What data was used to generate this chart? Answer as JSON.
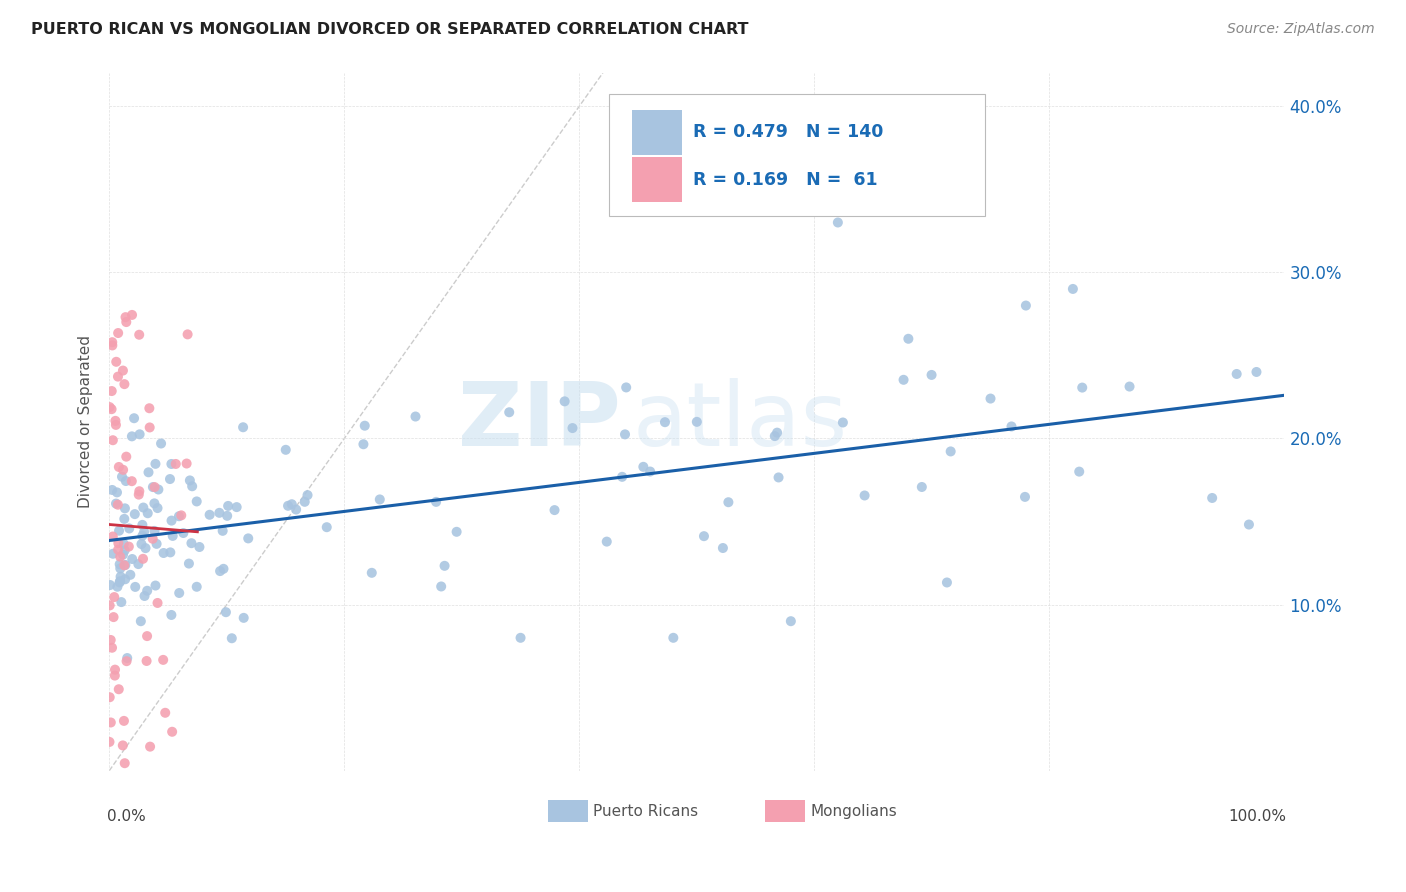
{
  "title": "PUERTO RICAN VS MONGOLIAN DIVORCED OR SEPARATED CORRELATION CHART",
  "source": "Source: ZipAtlas.com",
  "ylabel": "Divorced or Separated",
  "x_range": [
    0.0,
    1.0
  ],
  "y_range": [
    0.0,
    0.42
  ],
  "blue_R": 0.479,
  "blue_N": 140,
  "pink_R": 0.169,
  "pink_N": 61,
  "blue_color": "#a8c4e0",
  "pink_color": "#f4a0b0",
  "blue_line_color": "#1a5fa8",
  "pink_line_color": "#cc3344",
  "diagonal_color": "#cccccc",
  "watermark_zip": "ZIP",
  "watermark_atlas": "atlas",
  "legend_R_color": "#1a6bb5"
}
